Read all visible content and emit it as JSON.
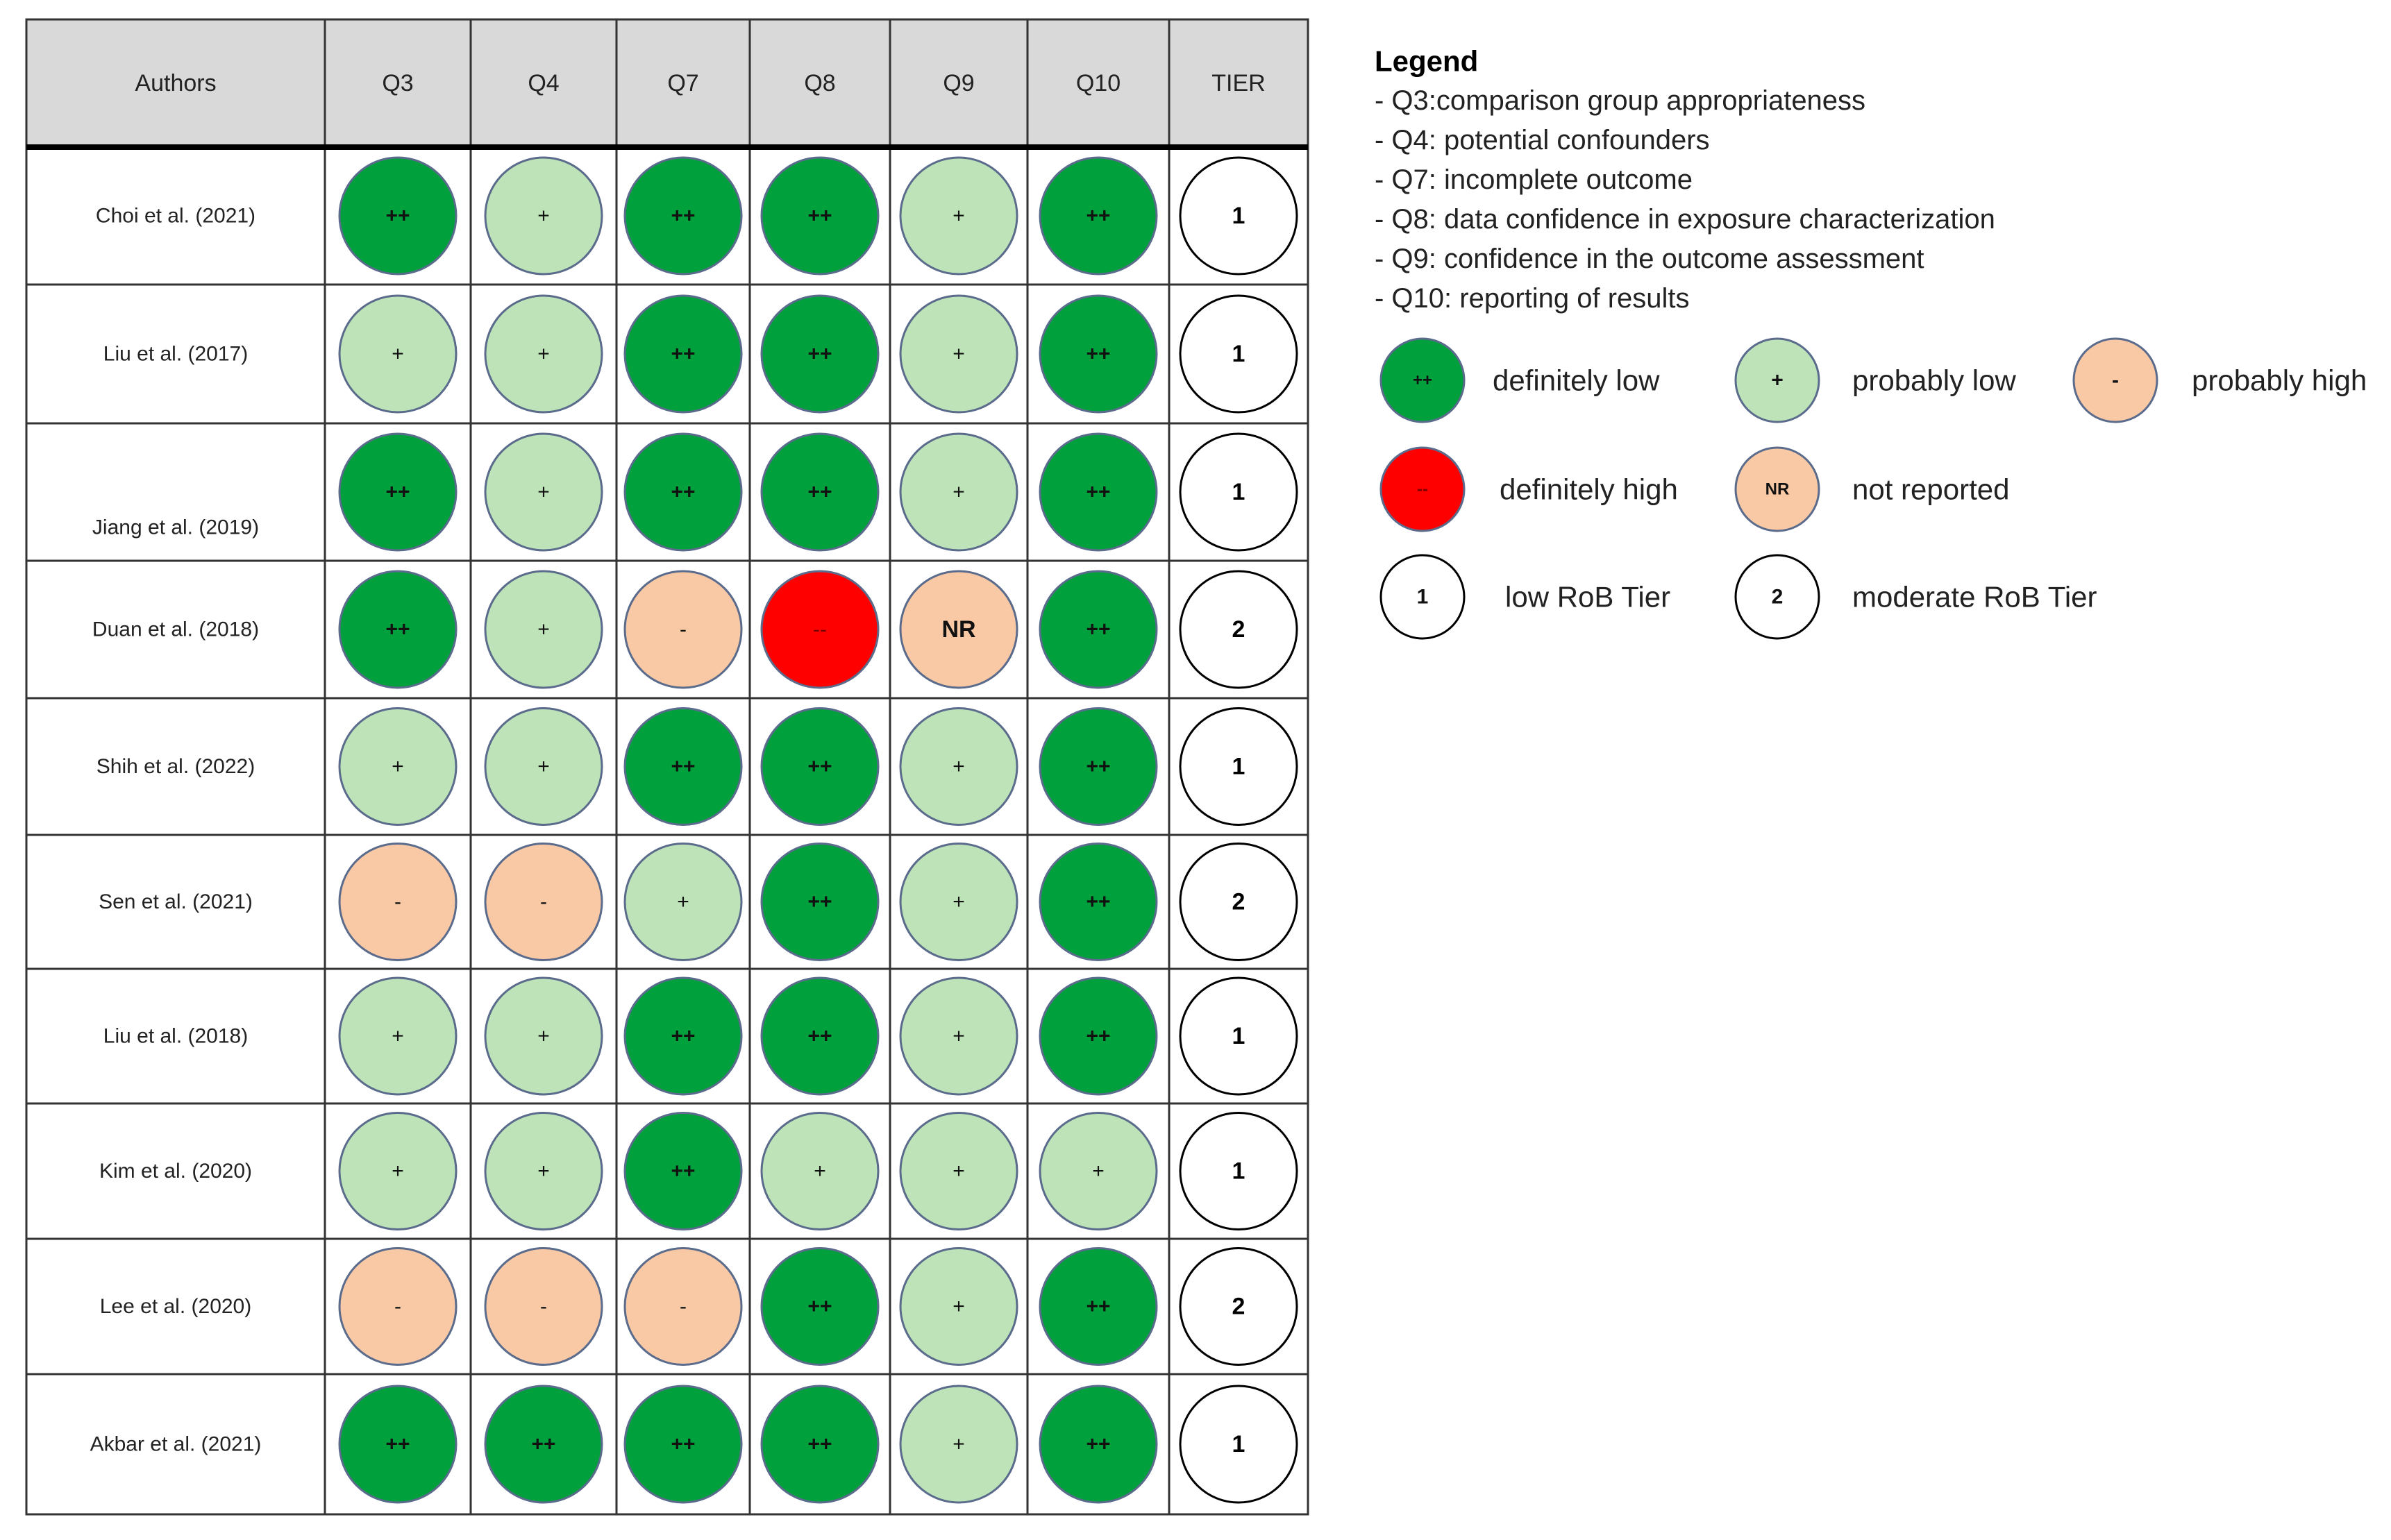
{
  "chart_data": {
    "type": "table",
    "title": "",
    "columns": [
      "Authors",
      "Q3",
      "Q4",
      "Q7",
      "Q8",
      "Q9",
      "Q10",
      "TIER"
    ],
    "rows": [
      {
        "author": "Choi et al. (2021)",
        "ratings": [
          "++",
          "+",
          "++",
          "++",
          "+",
          "++"
        ],
        "tier": "1"
      },
      {
        "author": "Liu et al. (2017)",
        "ratings": [
          "+",
          "+",
          "++",
          "++",
          "+",
          "++"
        ],
        "tier": "1"
      },
      {
        "author": "Jiang et al. (2019)",
        "ratings": [
          "++",
          "+",
          "++",
          "++",
          "+",
          "++"
        ],
        "tier": "1"
      },
      {
        "author": "Duan et al. (2018)",
        "ratings": [
          "++",
          "+",
          "-",
          "--",
          "NR",
          "++"
        ],
        "tier": "2"
      },
      {
        "author": "Shih et al. (2022)",
        "ratings": [
          "+",
          "+",
          "++",
          "++",
          "+",
          "++"
        ],
        "tier": "1"
      },
      {
        "author": "Sen et al. (2021)",
        "ratings": [
          "-",
          "-",
          "+",
          "++",
          "+",
          "++"
        ],
        "tier": "2"
      },
      {
        "author": "Liu et al. (2018)",
        "ratings": [
          "+",
          "+",
          "++",
          "++",
          "+",
          "++"
        ],
        "tier": "1"
      },
      {
        "author": "Kim et al. (2020)",
        "ratings": [
          "+",
          "+",
          "++",
          "+",
          "+",
          "+"
        ],
        "tier": "1"
      },
      {
        "author": "Lee et al. (2020)",
        "ratings": [
          "-",
          "-",
          "-",
          "++",
          "+",
          "++"
        ],
        "tier": "2"
      },
      {
        "author": "Akbar et al. (2021)",
        "ratings": [
          "++",
          "++",
          "++",
          "++",
          "+",
          "++"
        ],
        "tier": "1"
      }
    ],
    "legend": {
      "title": "Legend",
      "definitions": [
        "- Q3:comparison group appropriateness",
        "- Q4: potential confounders",
        "- Q7: incomplete outcome",
        "- Q8: data confidence in exposure characterization",
        "- Q9: confidence in the outcome assessment",
        "- Q10: reporting of results"
      ],
      "keys": [
        {
          "symbol": "++",
          "label": "definitely low"
        },
        {
          "symbol": "+",
          "label": "probably low"
        },
        {
          "symbol": "-",
          "label": "probably high"
        },
        {
          "symbol": "--",
          "label": "definitely high"
        },
        {
          "symbol": "NR",
          "label": "not reported"
        },
        {
          "symbol": "1",
          "label": "low RoB Tier"
        },
        {
          "symbol": "2",
          "label": "moderate RoB Tier"
        }
      ]
    },
    "colors": {
      "++": "#00a03c",
      "+": "#bfe3b8",
      "-": "#f9c9a6",
      "--": "#ff0000",
      "NR": "#f9c9a6",
      "tier": "#ffffff",
      "header_bg": "#d9d9d9",
      "circle_stroke": "#5a6b8c",
      "grid": "#333333"
    }
  }
}
